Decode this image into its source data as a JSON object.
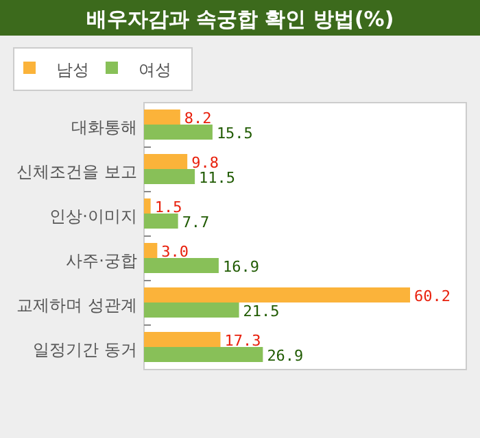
{
  "chart_data": {
    "type": "bar",
    "orientation": "horizontal",
    "title": "배우자감과 속궁합 확인 방법(%)",
    "categories": [
      "대화통해",
      "신체조건을 보고",
      "인상·이미지",
      "사주·궁합",
      "교제하며 성관계",
      "일정기간 동거"
    ],
    "series": [
      {
        "name": "남성",
        "color": "#fbb33a",
        "values": [
          8.2,
          9.8,
          1.5,
          3.0,
          60.2,
          17.3
        ],
        "value_labels": [
          "8.2",
          "9.8",
          "1.5",
          "3.0",
          "60.2",
          "17.3"
        ]
      },
      {
        "name": "여성",
        "color": "#88c058",
        "values": [
          15.5,
          11.5,
          7.7,
          16.9,
          21.5,
          26.9
        ],
        "value_labels": [
          "15.5",
          "11.5",
          "7.7",
          "16.9",
          "21.5",
          "26.9"
        ]
      }
    ],
    "legend": "top left"
  }
}
